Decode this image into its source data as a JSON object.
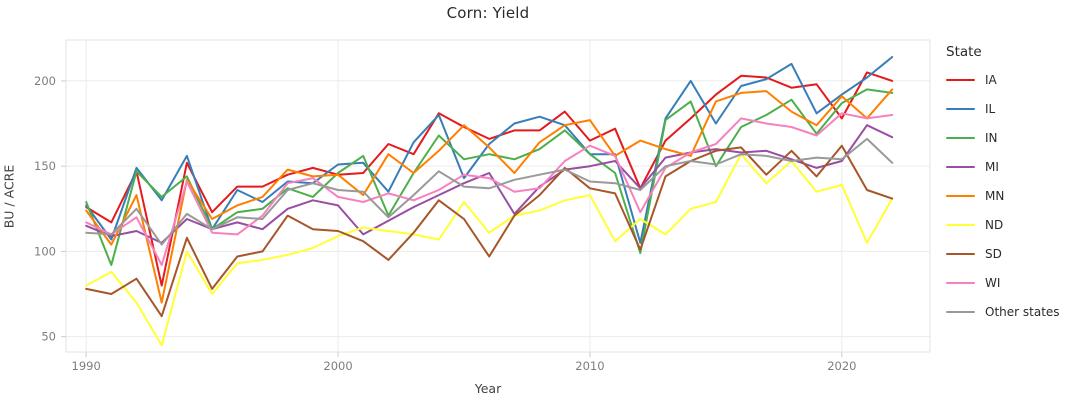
{
  "legend": {
    "title": "State"
  },
  "colors": {
    "background": "#ffffff",
    "grid": "#ebebeb",
    "plot_border": "#e3e3e3",
    "tick_mark": "#cccccc",
    "axis_text": "#7e7e7e",
    "title_text": "#2b2b2b"
  },
  "chart_data": {
    "type": "line",
    "title": "Corn: Yield",
    "xlabel": "Year",
    "ylabel": "BU / ACRE",
    "grid": true,
    "legend_position": "right",
    "legend_title": "State",
    "x_ticks": [
      1990,
      2000,
      2010,
      2020
    ],
    "y_ticks": [
      50,
      100,
      150,
      200
    ],
    "xlim": [
      1989.2,
      2023.5
    ],
    "ylim": [
      41,
      224
    ],
    "x": [
      1990,
      1991,
      1992,
      1993,
      1994,
      1995,
      1996,
      1997,
      1998,
      1999,
      2000,
      2001,
      2002,
      2003,
      2004,
      2005,
      2006,
      2007,
      2008,
      2009,
      2010,
      2011,
      2012,
      2013,
      2014,
      2015,
      2016,
      2017,
      2018,
      2019,
      2020,
      2021,
      2022
    ],
    "series": [
      {
        "name": "IA",
        "color": "#e41a1c",
        "values": [
          126,
          117,
          147,
          80,
          152,
          123,
          138,
          138,
          145,
          149,
          145,
          146,
          163,
          157,
          181,
          173,
          166,
          171,
          171,
          182,
          165,
          172,
          137,
          165,
          178,
          192,
          203,
          202,
          196,
          198,
          178,
          205,
          200
        ]
      },
      {
        "name": "IL",
        "color": "#377eb8",
        "values": [
          127,
          107,
          149,
          130,
          156,
          113,
          136,
          129,
          141,
          140,
          151,
          152,
          135,
          164,
          180,
          143,
          163,
          175,
          179,
          174,
          157,
          157,
          105,
          178,
          200,
          175,
          197,
          201,
          210,
          181,
          192,
          202,
          214
        ]
      },
      {
        "name": "IN",
        "color": "#4daf4a",
        "values": [
          129,
          92,
          147,
          132,
          144,
          113,
          123,
          125,
          137,
          132,
          146,
          156,
          121,
          146,
          168,
          154,
          157,
          154,
          160,
          171,
          157,
          146,
          99,
          177,
          188,
          150,
          173,
          180,
          189,
          169,
          187,
          195,
          193
        ]
      },
      {
        "name": "MI",
        "color": "#984ea3",
        "values": [
          115,
          109,
          112,
          105,
          119,
          113,
          117,
          113,
          125,
          130,
          127,
          110,
          118,
          126,
          133,
          140,
          146,
          122,
          138,
          148,
          150,
          153,
          137,
          155,
          158,
          160,
          158,
          159,
          154,
          149,
          153,
          174,
          167
        ]
      },
      {
        "name": "MN",
        "color": "#ff7f00",
        "values": [
          124,
          104,
          133,
          70,
          142,
          119,
          127,
          132,
          148,
          144,
          145,
          133,
          157,
          146,
          159,
          174,
          161,
          146,
          164,
          174,
          177,
          156,
          165,
          160,
          156,
          188,
          193,
          194,
          182,
          174,
          191,
          178,
          195
        ]
      },
      {
        "name": "ND",
        "color": "#ffff33",
        "values": [
          80,
          88,
          70,
          45,
          100,
          75,
          93,
          95,
          98,
          102,
          109,
          114,
          112,
          110,
          107,
          129,
          111,
          121,
          124,
          130,
          133,
          106,
          119,
          110,
          125,
          129,
          157,
          140,
          153,
          135,
          139,
          105,
          131
        ]
      },
      {
        "name": "SD",
        "color": "#a65628",
        "values": [
          78,
          75,
          84,
          62,
          108,
          78,
          97,
          100,
          121,
          113,
          112,
          106,
          95,
          111,
          130,
          119,
          97,
          121,
          133,
          149,
          137,
          134,
          101,
          144,
          153,
          159,
          161,
          145,
          159,
          144,
          162,
          136,
          131
        ]
      },
      {
        "name": "WI",
        "color": "#f781bf",
        "values": [
          117,
          110,
          120,
          92,
          141,
          111,
          110,
          121,
          140,
          143,
          132,
          129,
          134,
          130,
          136,
          145,
          143,
          135,
          137,
          153,
          162,
          156,
          123,
          149,
          158,
          163,
          178,
          175,
          173,
          168,
          181,
          178,
          180
        ]
      },
      {
        "name": "Other states",
        "color": "#999999",
        "values": [
          111,
          110,
          125,
          104,
          122,
          113,
          120,
          119,
          136,
          140,
          136,
          135,
          120,
          133,
          147,
          138,
          137,
          142,
          145,
          148,
          141,
          140,
          136,
          150,
          153,
          151,
          157,
          156,
          153,
          155,
          154,
          166,
          152
        ]
      }
    ]
  }
}
